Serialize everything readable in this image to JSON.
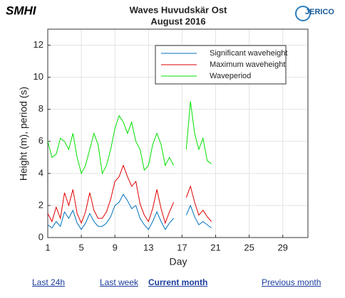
{
  "logos": {
    "left": "SMHI",
    "right": "JERICO"
  },
  "chart_data": {
    "type": "line",
    "title": "Waves Huvudskär Ost",
    "subtitle": "August 2016",
    "xlabel": "Day",
    "ylabel": "Height (m), period (s)",
    "x": [
      1,
      1.5,
      2,
      2.5,
      3,
      3.5,
      4,
      4.5,
      5,
      5.5,
      6,
      6.5,
      7,
      7.5,
      8,
      8.5,
      9,
      9.5,
      10,
      10.5,
      11,
      11.5,
      12,
      12.5,
      13,
      13.5,
      14,
      14.5,
      15,
      15.5,
      16,
      16.5,
      17,
      17.5,
      18,
      18.5,
      19,
      19.5,
      20,
      20.5
    ],
    "series": [
      {
        "name": "Significant waveheight",
        "color": "#0072bd",
        "values": [
          0.8,
          0.6,
          1.0,
          0.7,
          1.6,
          1.2,
          1.7,
          0.9,
          0.5,
          0.9,
          1.5,
          1.0,
          0.7,
          0.7,
          0.9,
          1.3,
          2.0,
          2.2,
          2.7,
          2.3,
          1.8,
          2.0,
          1.2,
          0.8,
          0.5,
          1.0,
          1.6,
          1.0,
          0.5,
          0.9,
          1.2,
          null,
          null,
          1.4,
          2.0,
          1.3,
          0.8,
          1.0,
          0.8,
          0.6
        ]
      },
      {
        "name": "Maximum waveheight",
        "color": "#e00000",
        "values": [
          1.5,
          1.0,
          1.9,
          1.2,
          2.8,
          2.0,
          3.0,
          1.5,
          0.9,
          1.6,
          2.8,
          1.7,
          1.2,
          1.2,
          1.6,
          2.4,
          3.5,
          3.8,
          4.5,
          3.8,
          3.2,
          3.5,
          2.1,
          1.4,
          1.0,
          1.8,
          3.0,
          1.8,
          0.9,
          1.6,
          2.2,
          null,
          null,
          2.5,
          3.2,
          2.2,
          1.4,
          1.7,
          1.3,
          1.0
        ]
      },
      {
        "name": "Waveperiod",
        "color": "#00e000",
        "values": [
          6.0,
          5.0,
          5.2,
          6.2,
          6.0,
          5.5,
          6.5,
          5.0,
          4.0,
          4.5,
          5.5,
          6.5,
          5.8,
          4.0,
          4.5,
          5.5,
          6.8,
          7.6,
          7.2,
          6.5,
          7.2,
          6.0,
          5.5,
          4.2,
          4.5,
          5.8,
          6.5,
          5.8,
          4.5,
          5.0,
          4.5,
          null,
          null,
          5.5,
          8.5,
          6.5,
          5.5,
          6.2,
          4.8,
          4.6
        ]
      }
    ],
    "xlim": [
      1,
      32
    ],
    "xticks": [
      1,
      5,
      9,
      13,
      17,
      21,
      25,
      29
    ],
    "ylim": [
      0,
      13
    ],
    "yticks": [
      0,
      2,
      4,
      6,
      8,
      10,
      12
    ],
    "grid": true,
    "legend": "upper right"
  },
  "nav": [
    "Last 24h",
    "Last week",
    "Current month",
    "Previous month"
  ]
}
